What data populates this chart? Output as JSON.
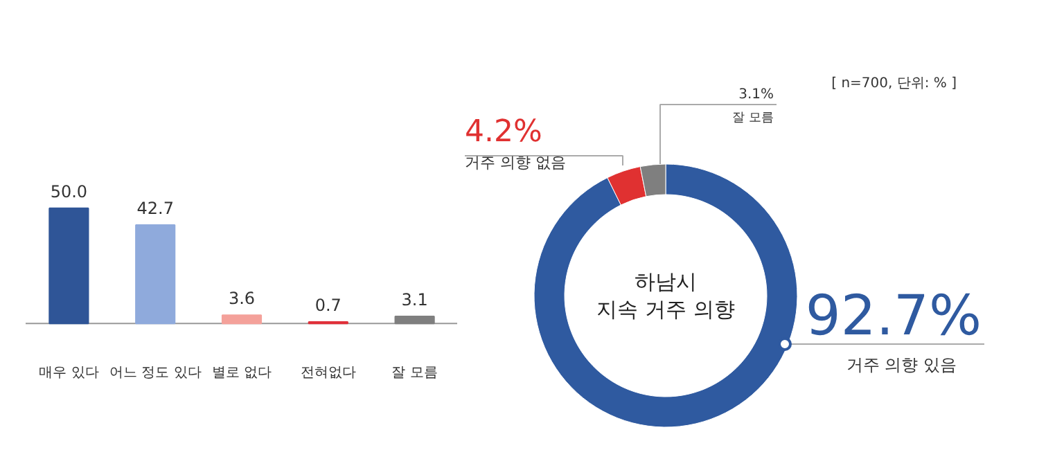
{
  "chart_data": [
    {
      "type": "bar",
      "categories": [
        "매우 있다",
        "어느 정도 있다",
        "별로 없다",
        "전혀없다",
        "잘 모름"
      ],
      "values": [
        50.0,
        42.7,
        3.6,
        0.7,
        3.1
      ],
      "colors": [
        "#2f5597",
        "#8faadc",
        "#f4a19a",
        "#e0303a",
        "#7f7f7f"
      ],
      "value_labels": [
        "50.0",
        "42.7",
        "3.6",
        "0.7",
        "3.1"
      ]
    },
    {
      "type": "donut",
      "title": "하남시\n지속 거주 의향",
      "categories": [
        "거주 의향 있음",
        "거주 의향 없음",
        "잘 모름"
      ],
      "values": [
        92.7,
        4.2,
        3.1
      ],
      "colors": [
        "#2f5aa0",
        "#e03131",
        "#7f7f7f"
      ],
      "value_labels": [
        "92.7%",
        "4.2%",
        "3.1%"
      ],
      "annotations": [
        "[ n=700, 단위: % ]"
      ]
    }
  ]
}
